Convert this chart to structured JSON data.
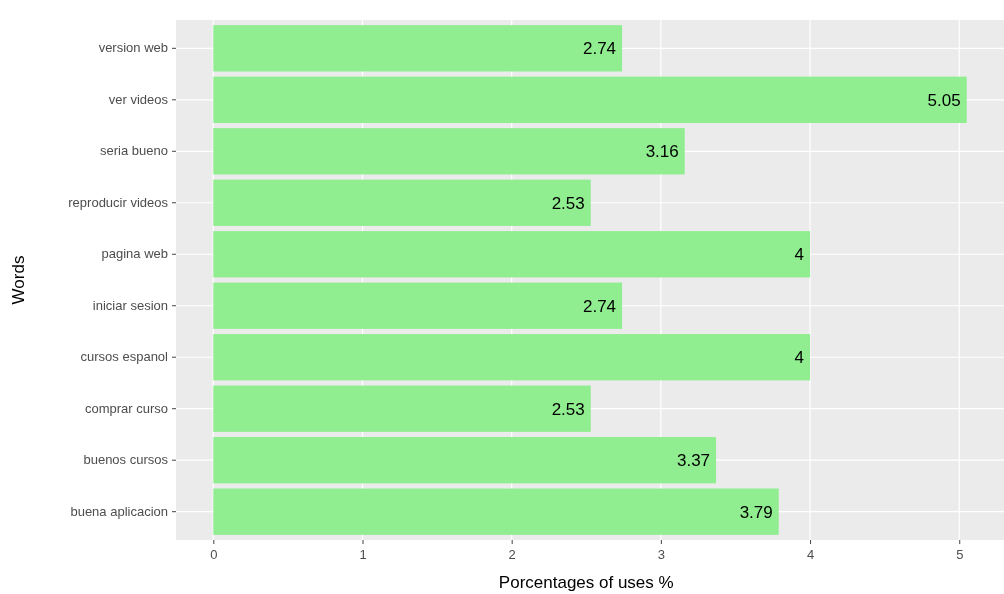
{
  "chart_data": {
    "type": "bar",
    "orientation": "horizontal",
    "xlabel": "Porcentages of uses %",
    "ylabel": "Words",
    "categories": [
      "version web",
      "ver videos",
      "seria bueno",
      "reproducir videos",
      "pagina web",
      "iniciar sesion",
      "cursos espanol",
      "comprar curso",
      "buenos cursos",
      "buena aplicacion"
    ],
    "values": [
      2.74,
      5.05,
      3.16,
      2.53,
      4,
      2.74,
      4,
      2.53,
      3.37,
      3.79
    ],
    "color": "#90ee90",
    "xlim": [
      -0.25,
      5.3
    ],
    "xticks": [
      0,
      1,
      2,
      3,
      4,
      5
    ],
    "grid": true,
    "data_labels": true
  }
}
